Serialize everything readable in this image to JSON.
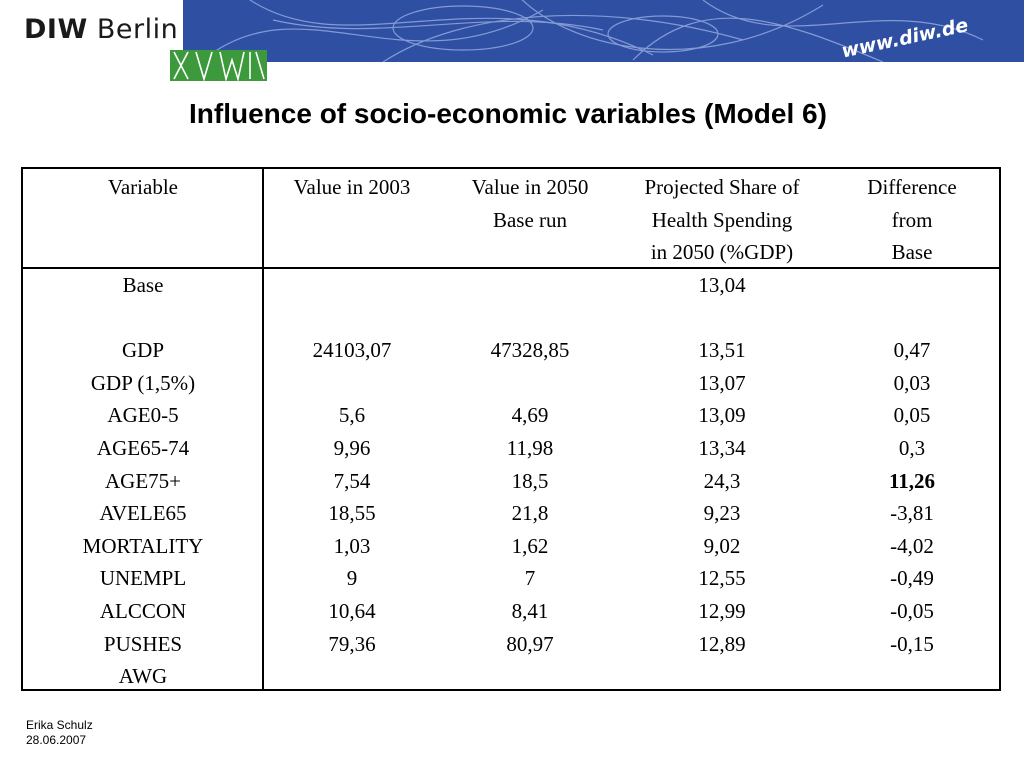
{
  "header": {
    "logo_bold": "DIW",
    "logo_rest": " Berlin",
    "url": "www.diw.de"
  },
  "title": "Influence of socio-economic variables (Model 6)",
  "table": {
    "headers": [
      [
        "Variable"
      ],
      [
        "Value in 2003"
      ],
      [
        "Value in 2050",
        "Base run"
      ],
      [
        "Projected Share of",
        "Health Spending",
        "in 2050 (%GDP)"
      ],
      [
        "Difference",
        "from",
        "Base"
      ]
    ],
    "rows": [
      {
        "variable": "Base",
        "v2003": "",
        "v2050": "",
        "share": "13,04",
        "diff": ""
      },
      {
        "variable": "",
        "v2003": "",
        "v2050": "",
        "share": "",
        "diff": ""
      },
      {
        "variable": "GDP",
        "v2003": "24103,07",
        "v2050": "47328,85",
        "share": "13,51",
        "diff": "0,47"
      },
      {
        "variable": "GDP (1,5%)",
        "v2003": "",
        "v2050": "",
        "share": "13,07",
        "diff": "0,03"
      },
      {
        "variable": "AGE0-5",
        "v2003": "5,6",
        "v2050": "4,69",
        "share": "13,09",
        "diff": "0,05"
      },
      {
        "variable": "AGE65-74",
        "v2003": "9,96",
        "v2050": "11,98",
        "share": "13,34",
        "diff": "0,3"
      },
      {
        "variable": "AGE75+",
        "v2003": "7,54",
        "v2050": "18,5",
        "share": "24,3",
        "diff": "11,26"
      },
      {
        "variable": "AVELE65",
        "v2003": "18,55",
        "v2050": "21,8",
        "share": "9,23",
        "diff": "-3,81"
      },
      {
        "variable": "MORTALITY",
        "v2003": "1,03",
        "v2050": "1,62",
        "share": "9,02",
        "diff": "-4,02"
      },
      {
        "variable": "UNEMPL",
        "v2003": "9",
        "v2050": "7",
        "share": "12,55",
        "diff": "-0,49"
      },
      {
        "variable": "ALCCON",
        "v2003": "10,64",
        "v2050": "8,41",
        "share": "12,99",
        "diff": "-0,05"
      },
      {
        "variable": "PUSHES",
        "v2003": "79,36",
        "v2050": "80,97",
        "share": "12,89",
        "diff": "-0,15"
      },
      {
        "variable": "AWG",
        "v2003": "",
        "v2050": "",
        "share": "",
        "diff": ""
      }
    ]
  },
  "footer": {
    "author": "Erika Schulz",
    "date": "28.06.2007"
  },
  "colors": {
    "banner_blue": "#2f4fa3",
    "logo_green": "#3c9a3c"
  }
}
